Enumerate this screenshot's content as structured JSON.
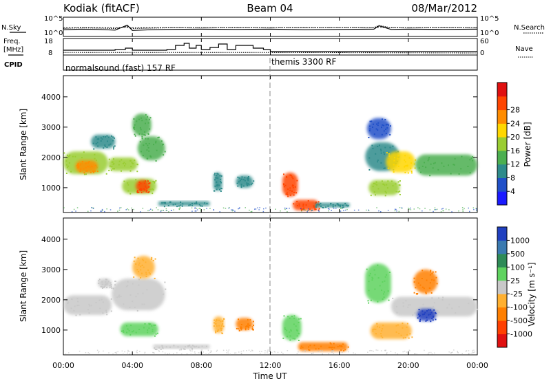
{
  "header": {
    "station": "Kodiak (fitACF)",
    "beam": "Beam 04",
    "date": "08/Mar/2012"
  },
  "noise_panel": {
    "left_label": "N.Sky",
    "right_label": "N.Search",
    "y_top": "10^5",
    "y_bottom": "10^0"
  },
  "freq_panel": {
    "left_label_1": "Freq.",
    "left_label_2": "[MHz]",
    "right_label": "Nave",
    "y_left": [
      "8",
      "18"
    ],
    "y_right": [
      "0",
      "60"
    ]
  },
  "cpid_panel": {
    "label": "CPID",
    "modes": [
      "normalsound (fast) 157 RF",
      "themis 3300 RF"
    ]
  },
  "panels": [
    {
      "name": "power",
      "ylabel": "Slant Range [km]",
      "yticks": [
        "1000",
        "2000",
        "3000",
        "4000"
      ]
    },
    {
      "name": "velocity",
      "ylabel": "Slant Range [km]",
      "yticks": [
        "1000",
        "2000",
        "3000",
        "4000"
      ]
    }
  ],
  "colorbars": {
    "power": {
      "label": "Power [dB]",
      "ticks": [
        "4",
        "8",
        "12",
        "16",
        "20",
        "24",
        "28"
      ],
      "colors": [
        "#1a1aff",
        "#2050c8",
        "#2e8b8b",
        "#4caf50",
        "#9acd32",
        "#ffd700",
        "#ff8c00",
        "#ff4500",
        "#e01010"
      ]
    },
    "velocity": {
      "label": "Velocity [m s⁻¹]",
      "ticks": [
        "1000",
        "500",
        "100",
        "25",
        "-25",
        "-100",
        "-500",
        "-1000"
      ],
      "colors": [
        "#2040c0",
        "#3a7ab0",
        "#2e8b57",
        "#5fd35f",
        "#c8c8c8",
        "#ffb030",
        "#ff7f00",
        "#ff4000",
        "#e01010"
      ]
    }
  },
  "chart_data": {
    "type": "heatmap",
    "xlabel": "Time UT",
    "x_ticks": [
      "00:00",
      "04:00",
      "08:00",
      "12:00",
      "16:00",
      "20:00",
      "00:00"
    ],
    "x_range_hours": [
      0,
      24
    ],
    "y_range_km": [
      180,
      4700
    ],
    "cpid_change_hour": 12.0,
    "noise": {
      "hours": [
        0,
        1,
        2,
        3,
        3.7,
        4,
        5,
        6,
        8,
        10,
        12,
        14,
        16,
        18,
        18.3,
        19,
        20,
        22,
        24
      ],
      "sky_log": [
        1.6,
        1.8,
        1.7,
        1.5,
        3.0,
        1.4,
        1.6,
        1.7,
        1.8,
        1.7,
        1.8,
        1.6,
        1.7,
        1.8,
        2.8,
        1.7,
        1.8,
        1.7,
        1.8
      ],
      "search_log": [
        2.0,
        2.2,
        2.1,
        2.0,
        2.6,
        2.0,
        2.1,
        2.2,
        2.3,
        2.2,
        2.3,
        2.2,
        2.3,
        2.3,
        2.9,
        2.2,
        2.3,
        2.2,
        2.3
      ]
    },
    "freq": {
      "hours": [
        0,
        2,
        3,
        3.6,
        4,
        5,
        6,
        6.5,
        7,
        7.3,
        7.7,
        8,
        8.5,
        9,
        9.5,
        10,
        10.5,
        11,
        11.6,
        12,
        24
      ],
      "mhz": [
        10.5,
        10.5,
        11,
        12,
        10.5,
        10.5,
        11,
        14,
        15.5,
        12,
        14,
        11,
        12.5,
        15,
        11,
        14,
        14,
        12,
        11,
        9.5,
        9.5
      ]
    },
    "nave": {
      "hours": [
        0,
        12,
        24
      ],
      "count": [
        5,
        5,
        3
      ]
    },
    "power_echoes": [
      {
        "t": [
          0.0,
          2.6
        ],
        "r": [
          1450,
          2200
        ],
        "level": 16
      },
      {
        "t": [
          0.7,
          2.0
        ],
        "r": [
          1500,
          1900
        ],
        "level": 24
      },
      {
        "t": [
          2.6,
          4.3
        ],
        "r": [
          1550,
          2000
        ],
        "level": 16
      },
      {
        "t": [
          4.3,
          5.9
        ],
        "r": [
          1900,
          2700
        ],
        "level": 12
      },
      {
        "t": [
          3.4,
          5.4
        ],
        "r": [
          800,
          1300
        ],
        "level": 16
      },
      {
        "t": [
          4.2,
          5.0
        ],
        "r": [
          850,
          1250
        ],
        "level": 28
      },
      {
        "t": [
          4.0,
          5.1
        ],
        "r": [
          2700,
          3450
        ],
        "level": 12
      },
      {
        "t": [
          1.6,
          3.0
        ],
        "r": [
          2300,
          2750
        ],
        "level": 8
      },
      {
        "t": [
          5.5,
          8.5
        ],
        "r": [
          400,
          550
        ],
        "level": 8
      },
      {
        "t": [
          8.7,
          9.2
        ],
        "r": [
          900,
          1500
        ],
        "level": 8
      },
      {
        "t": [
          10.0,
          11.0
        ],
        "r": [
          1000,
          1400
        ],
        "level": 8
      },
      {
        "t": [
          12.7,
          13.6
        ],
        "r": [
          700,
          1500
        ],
        "level": 28
      },
      {
        "t": [
          13.3,
          14.8
        ],
        "r": [
          250,
          600
        ],
        "level": 28
      },
      {
        "t": [
          14.6,
          16.6
        ],
        "r": [
          350,
          500
        ],
        "level": 8
      },
      {
        "t": [
          17.5,
          19.5
        ],
        "r": [
          1550,
          2500
        ],
        "level": 8
      },
      {
        "t": [
          18.7,
          20.4
        ],
        "r": [
          1500,
          2200
        ],
        "level": 20
      },
      {
        "t": [
          20.4,
          24.0
        ],
        "r": [
          1400,
          2100
        ],
        "level": 12
      },
      {
        "t": [
          17.7,
          19.5
        ],
        "r": [
          750,
          1250
        ],
        "level": 16
      },
      {
        "t": [
          17.6,
          19.0
        ],
        "r": [
          2600,
          3300
        ],
        "level": 4
      }
    ],
    "velocity_echoes": [
      {
        "t": [
          0.0,
          2.8
        ],
        "r": [
          1500,
          2150
        ],
        "level": 0
      },
      {
        "t": [
          2.8,
          5.9
        ],
        "r": [
          1650,
          2700
        ],
        "level": 0
      },
      {
        "t": [
          3.3,
          5.5
        ],
        "r": [
          800,
          1250
        ],
        "level": 100
      },
      {
        "t": [
          4.0,
          5.3
        ],
        "r": [
          2700,
          3450
        ],
        "level": -100
      },
      {
        "t": [
          2.0,
          2.8
        ],
        "r": [
          2400,
          2700
        ],
        "level": 0
      },
      {
        "t": [
          5.2,
          8.5
        ],
        "r": [
          380,
          520
        ],
        "level": 0
      },
      {
        "t": [
          8.7,
          9.3
        ],
        "r": [
          900,
          1450
        ],
        "level": -100
      },
      {
        "t": [
          10.0,
          11.0
        ],
        "r": [
          1000,
          1400
        ],
        "level": -500
      },
      {
        "t": [
          12.7,
          13.8
        ],
        "r": [
          650,
          1500
        ],
        "level": 100
      },
      {
        "t": [
          13.6,
          16.5
        ],
        "r": [
          300,
          600
        ],
        "level": -500
      },
      {
        "t": [
          17.5,
          19.0
        ],
        "r": [
          1900,
          3200
        ],
        "level": 100
      },
      {
        "t": [
          19.0,
          24.0
        ],
        "r": [
          1450,
          2100
        ],
        "level": 0
      },
      {
        "t": [
          17.8,
          20.2
        ],
        "r": [
          700,
          1250
        ],
        "level": -100
      },
      {
        "t": [
          20.3,
          21.7
        ],
        "r": [
          2200,
          3000
        ],
        "level": -500
      },
      {
        "t": [
          20.5,
          21.6
        ],
        "r": [
          1300,
          1700
        ],
        "level": 1000
      }
    ]
  }
}
